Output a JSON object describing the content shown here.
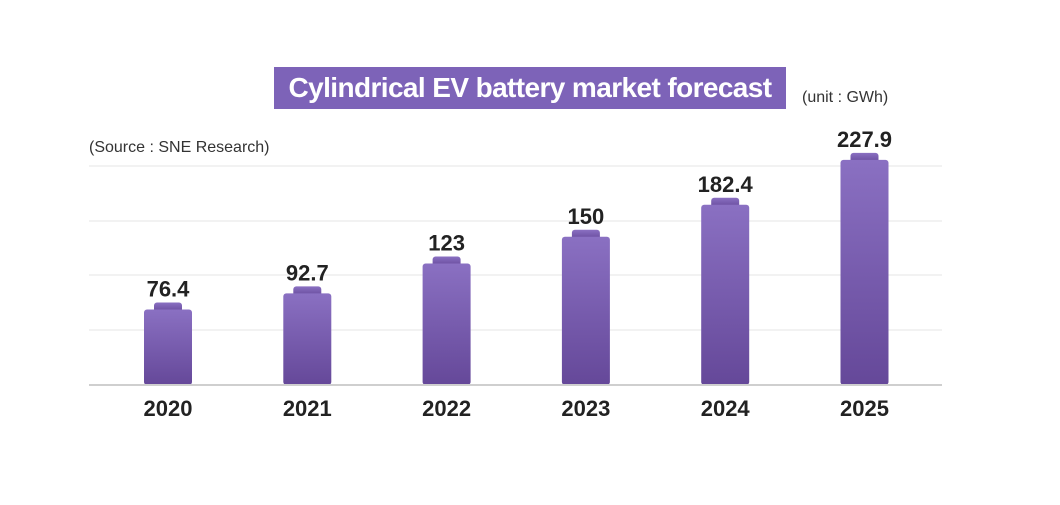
{
  "chart_data": {
    "type": "bar",
    "title": "Cylindrical EV battery market forecast",
    "unit_note": "(unit : GWh)",
    "source_note": "(Source : SNE Research)",
    "categories": [
      "2020",
      "2021",
      "2022",
      "2023",
      "2024",
      "2025"
    ],
    "values": [
      76.4,
      92.7,
      123,
      150,
      182.4,
      227.9
    ],
    "value_labels": [
      "76.4",
      "92.7",
      "123",
      "150",
      "182.4",
      "227.9"
    ],
    "ylim": [
      0,
      230
    ],
    "grid": true,
    "legend": "none"
  },
  "colors": {
    "title_bg": "#7d63b8",
    "bar_top": "#8a70c2",
    "bar_bottom": "#654899",
    "grid": "#e6e6e6",
    "axis": "#cfcfcf",
    "text": "#222222"
  }
}
